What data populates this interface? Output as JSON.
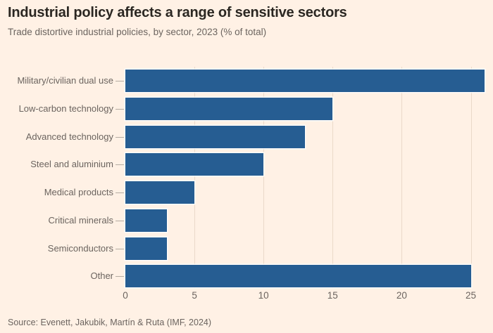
{
  "header": {
    "title": "Industrial policy affects a range of sensitive sectors",
    "subtitle": "Trade distortive industrial policies, by sector, 2023 (% of total)"
  },
  "chart_data": {
    "type": "bar",
    "orientation": "horizontal",
    "title": "Industrial policy affects a range of sensitive sectors",
    "subtitle": "Trade distortive industrial policies, by sector, 2023 (% of total)",
    "categories": [
      "Military/civilian dual use",
      "Low-carbon technology",
      "Advanced technology",
      "Steel and aluminium",
      "Medical products",
      "Critical minerals",
      "Semiconductors",
      "Other"
    ],
    "values": [
      26,
      15,
      13,
      10,
      5,
      3,
      3,
      25
    ],
    "xlabel": "",
    "ylabel": "",
    "xlim": [
      0,
      26.2
    ],
    "xticks": [
      0,
      5,
      10,
      15,
      20,
      25
    ],
    "grid": "vertical-only",
    "legend": "none",
    "colors": {
      "bar": "#265d92",
      "background": "#FFF1E5",
      "gridline": "#ead9c9",
      "title_text": "#2b2722",
      "muted_text": "#6b645f",
      "tick_dash": "#b5aca2"
    }
  },
  "footer": {
    "source": "Source: Evenett, Jakubik, Martín & Ruta (IMF, 2024)"
  }
}
